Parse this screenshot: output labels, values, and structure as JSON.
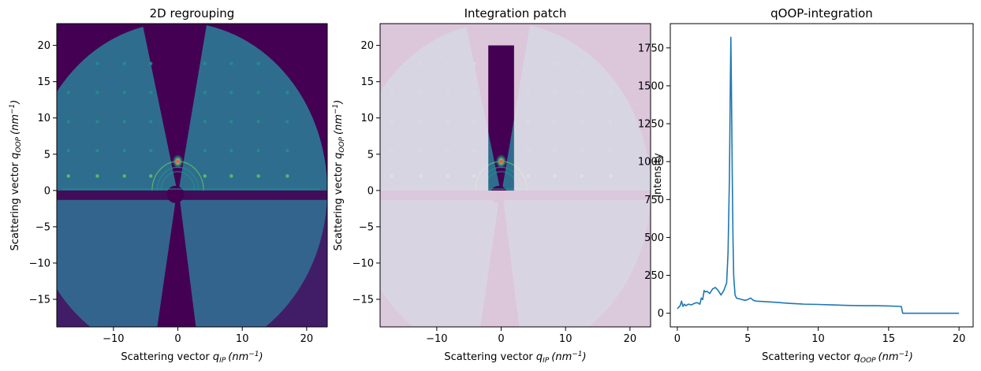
{
  "chart_data": [
    {
      "type": "heatmap",
      "title": "2D regrouping",
      "xlabel_text": "Scattering vector ",
      "xlabel_sym": "q",
      "xlabel_sub": "IP",
      "xlabel_unit": "(nm",
      "xlabel_exp": "−1",
      "ylabel_text": "Scattering vector ",
      "ylabel_sym": "q",
      "ylabel_sub": "OOP",
      "ylabel_unit": "(nm",
      "ylabel_exp": "−1",
      "xlim": [
        -18.8,
        23.2
      ],
      "ylim": [
        -18.8,
        23.0
      ],
      "xticks": [
        -10,
        0,
        10,
        20
      ],
      "xtick_labels": [
        "−10",
        "0",
        "10",
        "20"
      ],
      "yticks": [
        -15,
        -10,
        -5,
        0,
        5,
        10,
        15,
        20
      ],
      "ytick_labels": [
        "−15",
        "−10",
        "−5",
        "0",
        "5",
        "10",
        "15",
        "20"
      ],
      "detector_radius": 23.2,
      "colormap": [
        "#440154",
        "#3b528b",
        "#21918c",
        "#5ec962",
        "#fde725"
      ],
      "overlay": false
    },
    {
      "type": "heatmap",
      "title": "Integration patch",
      "xlabel_text": "Scattering vector ",
      "xlabel_sym": "q",
      "xlabel_sub": "IP",
      "xlabel_unit": "(nm",
      "xlabel_exp": "−1",
      "ylabel_text": "Scattering vector ",
      "ylabel_sym": "q",
      "ylabel_sub": "OOP",
      "ylabel_unit": "(nm",
      "ylabel_exp": "−1",
      "xlim": [
        -18.8,
        23.2
      ],
      "ylim": [
        -18.8,
        23.0
      ],
      "xticks": [
        -10,
        0,
        10,
        20
      ],
      "xtick_labels": [
        "−10",
        "0",
        "10",
        "20"
      ],
      "yticks": [
        -15,
        -10,
        -5,
        0,
        5,
        10,
        15,
        20
      ],
      "ytick_labels": [
        "−15",
        "−10",
        "−5",
        "0",
        "5",
        "10",
        "15",
        "20"
      ],
      "detector_radius": 23.2,
      "overlay": true,
      "patch": {
        "qip_range": [
          -2,
          2
        ],
        "qoop_range": [
          0,
          20
        ]
      },
      "mask_color": "#f5e6f0"
    },
    {
      "type": "line",
      "title": "qOOP-integration",
      "xlabel_text": "Scattering vector ",
      "xlabel_sym": "q",
      "xlabel_sub": "OOP",
      "xlabel_unit": "(nm",
      "xlabel_exp": "−1",
      "ylabel": "Intensity",
      "xlim": [
        -0.5,
        21.0
      ],
      "ylim": [
        -90,
        1910
      ],
      "xticks": [
        0,
        5,
        10,
        15,
        20
      ],
      "xtick_labels": [
        "0",
        "5",
        "10",
        "15",
        "20"
      ],
      "yticks": [
        0,
        250,
        500,
        750,
        1000,
        1250,
        1500,
        1750
      ],
      "ytick_labels": [
        "0",
        "250",
        "500",
        "750",
        "1000",
        "1250",
        "1500",
        "1750"
      ],
      "color": "#1f77b4",
      "x": [
        0.0,
        0.2,
        0.3,
        0.4,
        0.5,
        0.6,
        0.8,
        1.0,
        1.2,
        1.4,
        1.6,
        1.7,
        1.8,
        1.9,
        2.0,
        2.1,
        2.3,
        2.5,
        2.7,
        2.9,
        3.1,
        3.3,
        3.5,
        3.6,
        3.7,
        3.75,
        3.8,
        3.85,
        3.9,
        3.95,
        4.0,
        4.05,
        4.1,
        4.2,
        4.4,
        4.6,
        4.8,
        5.0,
        5.2,
        5.4,
        5.6,
        6.0,
        7.0,
        8.0,
        9.0,
        10.0,
        11.0,
        12.0,
        13.0,
        14.0,
        15.0,
        15.8,
        15.9,
        16.0,
        17.0,
        18.0,
        19.0,
        20.0
      ],
      "y": [
        30,
        50,
        80,
        45,
        60,
        50,
        60,
        55,
        65,
        70,
        60,
        100,
        90,
        150,
        140,
        145,
        130,
        160,
        170,
        150,
        120,
        150,
        200,
        400,
        900,
        1400,
        1820,
        1400,
        900,
        500,
        250,
        180,
        120,
        100,
        95,
        90,
        85,
        90,
        100,
        85,
        80,
        78,
        72,
        65,
        60,
        58,
        55,
        52,
        50,
        50,
        48,
        45,
        45,
        0,
        0,
        0,
        0,
        0
      ]
    }
  ]
}
